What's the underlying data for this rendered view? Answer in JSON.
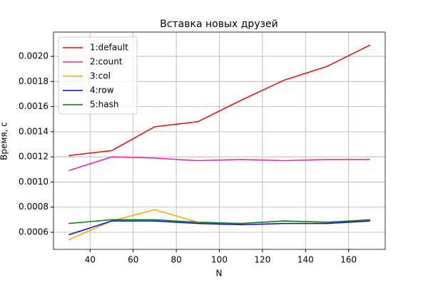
{
  "chart_data": {
    "type": "line",
    "title": "Вставка новых друзей",
    "xlabel": "N",
    "ylabel": "Время, с",
    "x": [
      30,
      50,
      70,
      90,
      110,
      130,
      150,
      170
    ],
    "xlim": [
      23,
      177
    ],
    "xticks": [
      40,
      60,
      80,
      100,
      120,
      140,
      160
    ],
    "ylim": [
      0.000464,
      0.002193
    ],
    "yticks": [
      0.0006,
      0.0008,
      {
        "value": 0.001,
        "label": "0.0010"
      },
      0.0012,
      0.0014,
      0.0016,
      0.0018,
      {
        "value": 0.002,
        "label": "0.0020"
      }
    ],
    "grid": true,
    "legend": "upper left",
    "series": [
      {
        "name": "1:default",
        "color": "red",
        "values": [
          0.00121,
          0.00125,
          0.00144,
          0.00148,
          0.00165,
          0.00181,
          0.00192,
          0.00209
        ]
      },
      {
        "name": "2:count",
        "color": "#ff1aa0",
        "values": [
          0.00109,
          0.0012,
          0.00119,
          0.00117,
          0.00118,
          0.00117,
          0.00118,
          0.00118
        ]
      },
      {
        "name": "3:col",
        "color": "orange",
        "values": [
          0.00054,
          0.00069,
          0.00078,
          0.00068,
          0.00067,
          0.00069,
          0.00068,
          0.00069
        ]
      },
      {
        "name": "4:row",
        "color": "blue",
        "values": [
          0.00058,
          0.00069,
          0.00069,
          0.00067,
          0.00066,
          0.00067,
          0.00067,
          0.00069
        ]
      },
      {
        "name": "5:hash",
        "color": "green",
        "values": [
          0.00067,
          0.0007,
          0.0007,
          0.00068,
          0.00067,
          0.00069,
          0.00068,
          0.0007
        ]
      }
    ]
  }
}
